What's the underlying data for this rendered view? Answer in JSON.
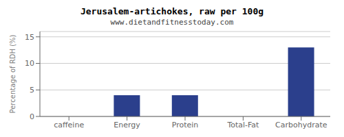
{
  "chart_data": {
    "type": "bar",
    "title": "Jerusalem-artichokes, raw per 100g",
    "subtitle": "www.dietandfitnesstoday.com",
    "categories": [
      "caffeine",
      "Energy",
      "Protein",
      "Total-Fat",
      "Carbohydrate"
    ],
    "values": [
      0,
      4,
      4,
      0,
      13
    ],
    "color": "#2b3f8c",
    "ylabel": "Percentage of RDH (%)",
    "ylim": [
      0,
      16
    ],
    "yticks": [
      0,
      5,
      10,
      15
    ],
    "grid": true
  }
}
